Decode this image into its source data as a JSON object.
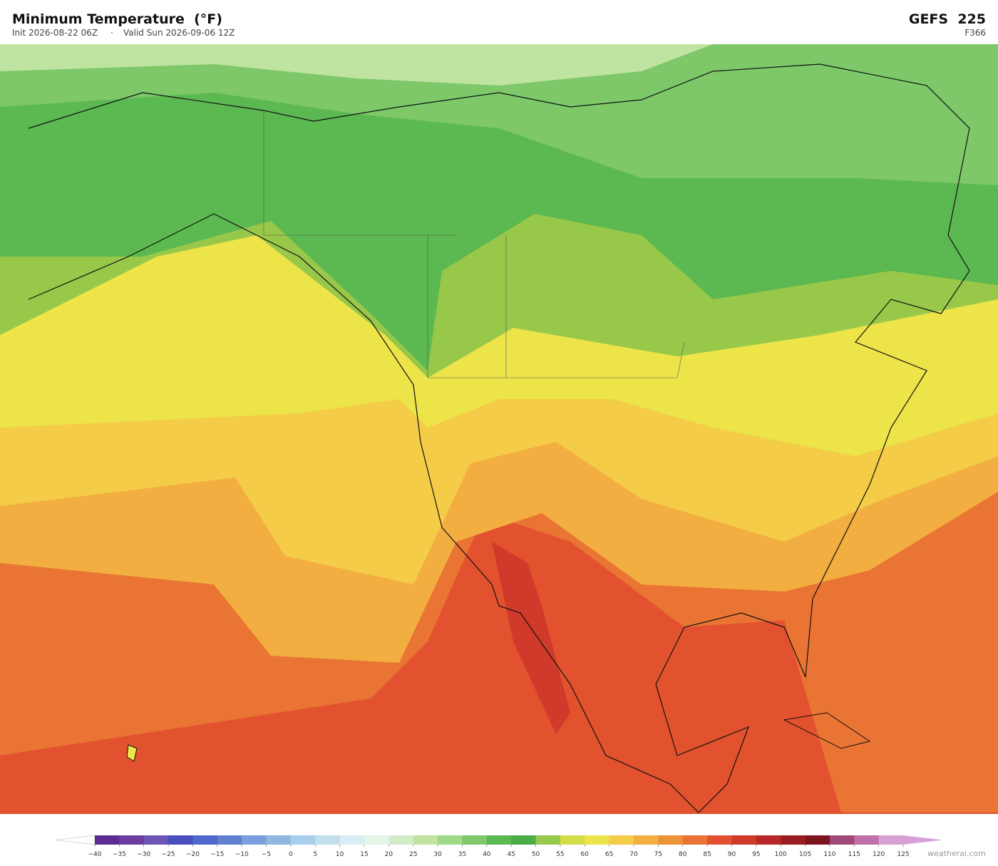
{
  "header": {
    "title": "Minimum Temperature  (°F)",
    "init": "Init 2026-08-22 06Z",
    "separator": "·",
    "valid": "Valid Sun 2026-09-06 12Z",
    "model": "GEFS  225",
    "forecast_hour": "F366"
  },
  "colorbar": {
    "ticks": [
      {
        "value": -40,
        "label": "−40"
      },
      {
        "value": -35,
        "label": "−35"
      },
      {
        "value": -30,
        "label": "−30"
      },
      {
        "value": -25,
        "label": "−25"
      },
      {
        "value": -20,
        "label": "−20"
      },
      {
        "value": -15,
        "label": "−15"
      },
      {
        "value": -10,
        "label": "−10"
      },
      {
        "value": -5,
        "label": "−5"
      },
      0,
      5,
      10,
      15,
      20,
      25,
      30,
      35,
      40,
      45,
      50,
      55,
      60,
      65,
      70,
      75,
      80,
      85,
      90,
      95,
      100,
      105,
      110,
      115,
      120,
      125
    ],
    "colors": [
      "#5a2d91",
      "#6a3fa0",
      "#6d55b5",
      "#4a4fc0",
      "#5068cc",
      "#6080d0",
      "#7aa0dc",
      "#8fb8e0",
      "#a8d0ea",
      "#c0e0f0",
      "#d8eef4",
      "#e6f4ea",
      "#d0ecc8",
      "#bfe3a0",
      "#a0d888",
      "#7ec86a",
      "#5cb850",
      "#4aad48",
      "#98c84a",
      "#d4dc48",
      "#ede44a",
      "#f4cc48",
      "#f2ae40",
      "#ee923a",
      "#ea7434",
      "#e2522e",
      "#cf3a2a",
      "#b82828",
      "#9a1c22",
      "#7e1420",
      "#a04878",
      "#c070a8",
      "#d8a0d0"
    ],
    "under_color": "#ffffff",
    "over_color": "#d8a0d8"
  },
  "footer": {
    "credit": "weatherai.com"
  }
}
